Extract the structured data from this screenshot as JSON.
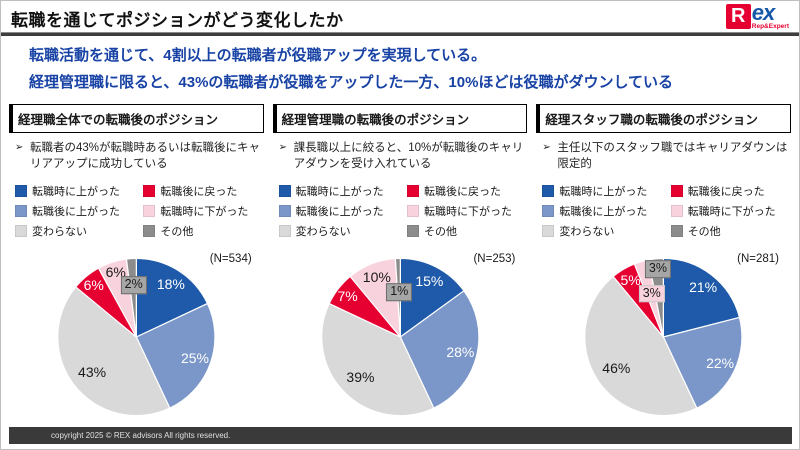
{
  "slide": {
    "title": "転職を通じてポジションがどう変化したか",
    "logo": {
      "r": "R",
      "ex": "ex",
      "sub": "Rep&Expert"
    },
    "summary_line1": "転職活動を通じて、4割以上の転職者が役職アップを実現している。",
    "summary_line2": "経理管理職に限ると、43%の転職者が役職をアップした一方、10%ほどは役職がダウンしている",
    "footer": "copyright 2025 © REX advisors All rights reserved."
  },
  "ui": {
    "bullet_marker": "➢"
  },
  "palette": {
    "darkblue": "#1E5AA9",
    "midblue": "#7B96C8",
    "lightgray": "#D9D9D9",
    "red": "#E60032",
    "pink": "#F8D2DC",
    "darkgray": "#8C8C8C",
    "box_gray": "#A6A6A6",
    "summary_blue": "#1843A5"
  },
  "legend": [
    {
      "label": "転職時に上がった",
      "color": "darkblue"
    },
    {
      "label": "転職後に戻った",
      "color": "red"
    },
    {
      "label": "転職後に上がった",
      "color": "midblue"
    },
    {
      "label": "転職時に下がった",
      "color": "pink"
    },
    {
      "label": "変わらない",
      "color": "lightgray"
    },
    {
      "label": "その他",
      "color": "darkgray"
    }
  ],
  "sections": [
    {
      "heading": "経理職全体での転職後のポジション",
      "bullet": "転職者の43%が転職時あるいは転職後にキャリアアップに成功している"
    },
    {
      "heading": "経理管理職の転職後のポジション",
      "bullet": "課長職以上に絞ると、10%が転職後のキャリアダウンを受け入れている"
    },
    {
      "heading": "経理スタッフ職の転職後のポジション",
      "bullet": "主任以下のスタッフ職ではキャリアダウンは限定的"
    }
  ],
  "chart_data": [
    {
      "type": "pie",
      "title": "経理職全体での転職後のポジション",
      "n": 534,
      "n_label": "(N=534)",
      "slices": [
        {
          "name": "転職時に上がった",
          "pct": 18,
          "color": "darkblue",
          "label": "18%",
          "text": "white",
          "lr": 0.8
        },
        {
          "name": "転職後に上がった",
          "pct": 25,
          "color": "midblue",
          "label": "25%",
          "text": "white",
          "lr": 0.78
        },
        {
          "name": "変わらない",
          "pct": 43,
          "color": "lightgray",
          "label": "43%",
          "text": "black",
          "lr": 0.72
        },
        {
          "name": "転職後に戻った",
          "pct": 6,
          "color": "red",
          "label": "6%",
          "text": "white",
          "lr": 0.86
        },
        {
          "name": "転職時に下がった",
          "pct": 6,
          "color": "pink",
          "label": "6%",
          "text": "black",
          "lr": 0.87
        },
        {
          "name": "その他",
          "pct": 2,
          "color": "darkgray",
          "label": "2%",
          "text": "black",
          "lr": 0.66,
          "box": "gray"
        }
      ]
    },
    {
      "type": "pie",
      "title": "経理管理職の転職後のポジション",
      "n": 253,
      "n_label": "(N=253)",
      "slices": [
        {
          "name": "転職時に上がった",
          "pct": 15,
          "color": "darkblue",
          "label": "15%",
          "text": "white",
          "lr": 0.8
        },
        {
          "name": "転職後に上がった",
          "pct": 28,
          "color": "midblue",
          "label": "28%",
          "text": "white",
          "lr": 0.78
        },
        {
          "name": "変わらない",
          "pct": 39,
          "color": "lightgray",
          "label": "39%",
          "text": "black",
          "lr": 0.72
        },
        {
          "name": "転職後に戻った",
          "pct": 7,
          "color": "red",
          "label": "7%",
          "text": "white",
          "lr": 0.85
        },
        {
          "name": "転職時に下がった",
          "pct": 10,
          "color": "pink",
          "label": "10%",
          "text": "black",
          "lr": 0.82
        },
        {
          "name": "その他",
          "pct": 1,
          "color": "darkgray",
          "label": "1%",
          "text": "black",
          "lr": 0.57,
          "box": "gray"
        }
      ]
    },
    {
      "type": "pie",
      "title": "経理スタッフ職の転職後のポジション",
      "n": 281,
      "n_label": "(N=281)",
      "slices": [
        {
          "name": "転職時に上がった",
          "pct": 21,
          "color": "darkblue",
          "label": "21%",
          "text": "white",
          "lr": 0.8
        },
        {
          "name": "転職後に上がった",
          "pct": 22,
          "color": "midblue",
          "label": "22%",
          "text": "white",
          "lr": 0.78
        },
        {
          "name": "変わらない",
          "pct": 46,
          "color": "lightgray",
          "label": "46%",
          "text": "black",
          "lr": 0.72
        },
        {
          "name": "転職後に戻った",
          "pct": 5,
          "color": "red",
          "label": "5%",
          "text": "white",
          "lr": 0.84
        },
        {
          "name": "転職時に下がった",
          "pct": 3,
          "color": "pink",
          "label": "3%",
          "text": "black",
          "lr": 0.57,
          "box": "pink"
        },
        {
          "name": "その他",
          "pct": 3,
          "color": "darkgray",
          "label": "3%",
          "text": "black",
          "lr": 0.86,
          "box": "gray"
        }
      ]
    }
  ]
}
